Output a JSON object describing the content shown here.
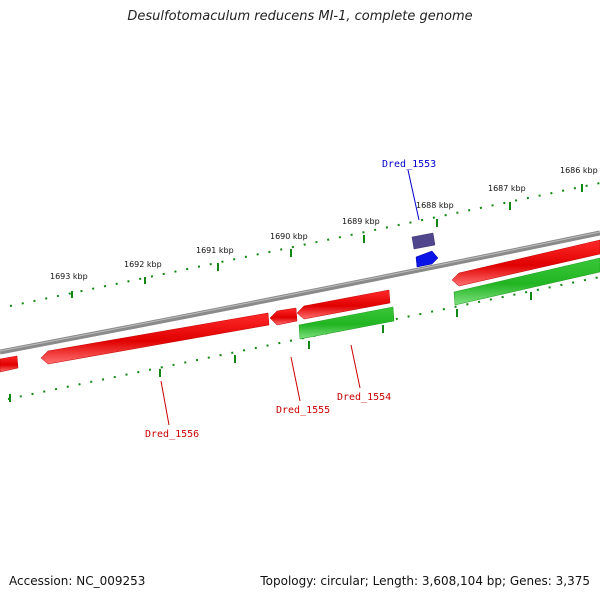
{
  "title": "Desulfotomaculum reducens MI-1, complete genome",
  "footer": {
    "accession": "Accession: NC_009253",
    "topology": "Topology: circular; Length: 3,608,104 bp; Genes: 3,375"
  },
  "ruler": {
    "tick_labels": [
      "1693 kbp",
      "1692 kbp",
      "1691 kbp",
      "1690 kbp",
      "1689 kbp",
      "1688 kbp",
      "1687 kbp",
      "1686 kbp"
    ]
  },
  "genes": [
    {
      "name": "Dred_1553",
      "color": "#0000cc"
    },
    {
      "name": "Dred_1554",
      "color": "#cc0000"
    },
    {
      "name": "Dred_1555",
      "color": "#cc0000"
    },
    {
      "name": "Dred_1556",
      "color": "#cc0000"
    }
  ],
  "colors": {
    "backbone": "#808080",
    "forward_red": "#ee1111",
    "reverse_green": "#33cc33",
    "ticks": "#118811",
    "blue_gene": "#0a14e6",
    "purple_gene": "#50468c"
  }
}
